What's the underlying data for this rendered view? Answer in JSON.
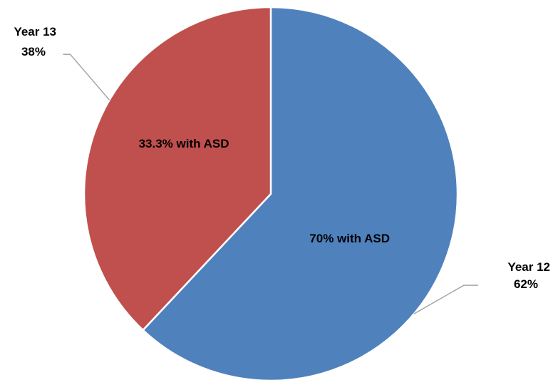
{
  "chart_data": {
    "type": "pie",
    "start_angle_deg": 0,
    "direction": "clockwise",
    "slices": [
      {
        "name": "Year 12",
        "value": 62,
        "percent_label": "62%",
        "inner_label": "70% with ASD",
        "color": "#4f81bd",
        "outside_label_side": "right"
      },
      {
        "name": "Year 13",
        "value": 38,
        "percent_label": "38%",
        "inner_label": "33.3% with ASD",
        "color": "#c0504d",
        "outside_label_side": "left"
      }
    ],
    "legend": "none",
    "title": ""
  }
}
